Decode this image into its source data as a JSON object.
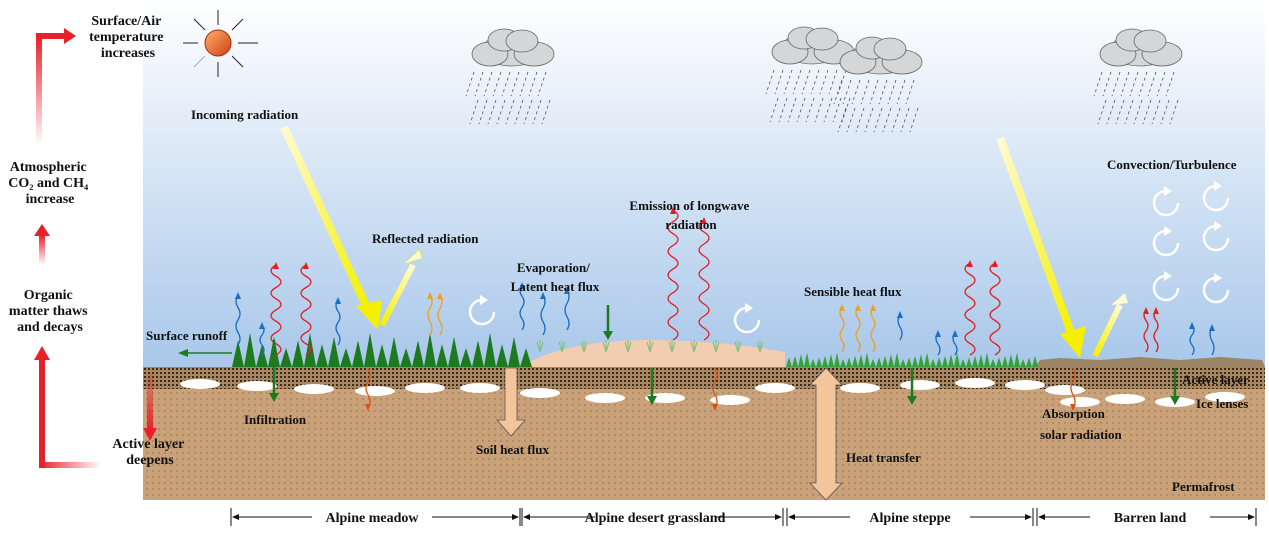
{
  "feedback_loop": {
    "temperature": [
      "Surface/Air",
      "temperature",
      "increases"
    ],
    "gases": [
      "Atmospheric",
      "CO₂ and CH₄",
      "increase"
    ],
    "organic": [
      "Organic",
      "matter thaws",
      "and decays"
    ],
    "active_layer": [
      "Active layer",
      "deepens"
    ]
  },
  "labels": {
    "incoming_radiation": "Incoming radiation",
    "reflected_radiation": "Reflected radiation",
    "evaporation": [
      "Evaporation/",
      "Latent heat flux"
    ],
    "longwave": [
      "Emission of longwave",
      "radiation"
    ],
    "sensible_heat": "Sensible heat flux",
    "convection": "Convection/Turbulence",
    "surface_runoff": "Surface runoff",
    "infiltration": "Infiltration",
    "soil_heat_flux": "Soil heat flux",
    "heat_transfer": "Heat transfer",
    "absorption": [
      "Absorption",
      "solar radiation"
    ],
    "active_layer": "Active layer",
    "ice_lenses": "Ice lenses",
    "permafrost": "Permafrost"
  },
  "zones": [
    "Alpine meadow",
    "Alpine desert grassland",
    "Alpine steppe",
    "Barren land"
  ],
  "colors": {
    "sky_top": "#ffffff",
    "sky_bottom": "#a8c7ea",
    "soil": "#c9a27a",
    "active_layer": "#7a5a3c",
    "grass": "#2e8b2e",
    "feedback_arrow": "#e8202a",
    "radiation": "#f5f000",
    "longwave": "#e02020",
    "vapor": "#1a6fc4",
    "flux_down": "#1f7a1f",
    "heat_arrow": "#f4c49a"
  }
}
